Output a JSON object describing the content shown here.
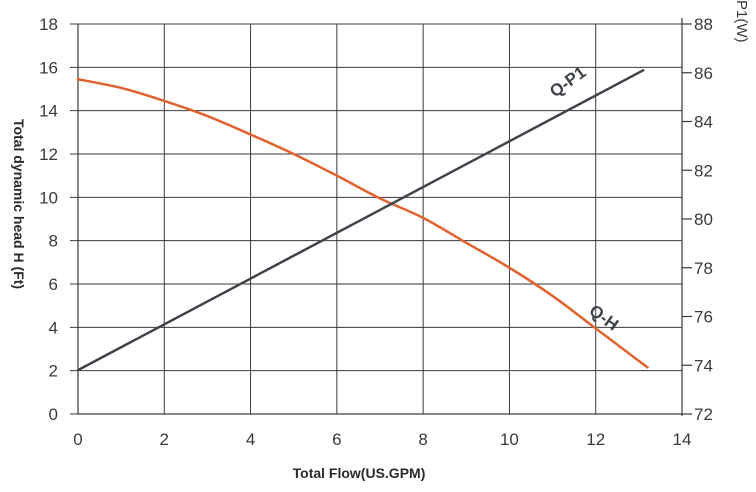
{
  "chart_data": {
    "type": "line",
    "xlabel": "Total Flow(US.GPM)",
    "ylabel": "Total dynamic head H (Ft)",
    "y2label": "P1(W)",
    "xlim": [
      0,
      14
    ],
    "ylim": [
      0,
      18
    ],
    "y2lim": [
      72,
      88
    ],
    "x_ticks": [
      "0",
      "2",
      "4",
      "6",
      "8",
      "10",
      "12",
      "14"
    ],
    "y_ticks": [
      "0",
      "2",
      "4",
      "6",
      "8",
      "10",
      "12",
      "14",
      "16",
      "18"
    ],
    "y2_ticks": [
      "72",
      "74",
      "76",
      "78",
      "80",
      "82",
      "84",
      "86",
      "88"
    ],
    "grid": true,
    "series": [
      {
        "name": "Q-H",
        "axis": "left",
        "color": "#e0622f",
        "x": [
          0,
          1,
          2,
          3,
          4,
          5,
          6,
          7,
          8,
          9,
          10,
          11,
          12,
          13.2
        ],
        "y": [
          15.45,
          15.05,
          14.45,
          13.75,
          12.9,
          12.0,
          11.0,
          9.95,
          9.05,
          7.9,
          6.75,
          5.45,
          3.95,
          2.15
        ]
      },
      {
        "name": "Q-P1",
        "axis": "right",
        "color": "#3d4349",
        "x": [
          0,
          13.1
        ],
        "y": [
          73.8,
          86.1
        ]
      }
    ]
  }
}
